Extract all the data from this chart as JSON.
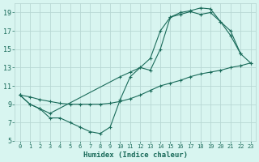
{
  "xlabel": "Humidex (Indice chaleur)",
  "bg_color": "#d8f5f0",
  "grid_color": "#b8d8d4",
  "line_color": "#1a6b5a",
  "xlim": [
    -0.5,
    23.5
  ],
  "ylim": [
    5,
    20
  ],
  "xticks": [
    0,
    1,
    2,
    3,
    4,
    5,
    6,
    7,
    8,
    9,
    10,
    11,
    12,
    13,
    14,
    15,
    16,
    17,
    18,
    19,
    20,
    21,
    22,
    23
  ],
  "yticks": [
    5,
    7,
    9,
    11,
    13,
    15,
    17,
    19
  ],
  "line1_x": [
    0,
    1,
    2,
    3,
    10,
    11,
    12,
    13,
    14,
    15,
    16,
    17,
    18,
    19,
    20,
    21,
    22,
    23
  ],
  "line1_y": [
    10,
    9,
    8.5,
    8,
    12,
    12.5,
    13,
    12.7,
    15,
    18.5,
    19,
    19.2,
    19.5,
    19.4,
    18,
    16.5,
    14.5,
    13.5
  ],
  "line2_x": [
    0,
    1,
    2,
    3,
    4,
    5,
    6,
    7,
    8,
    9,
    10,
    11,
    12,
    13,
    14,
    15,
    16,
    17,
    18,
    19,
    20,
    21,
    22
  ],
  "line2_y": [
    10,
    9,
    8.5,
    7.5,
    7.5,
    7.0,
    6.5,
    6.0,
    5.8,
    6.5,
    9.5,
    12,
    13,
    14,
    17,
    18.5,
    18.8,
    19.1,
    18.8,
    19.0,
    18.0,
    17.0,
    14.5
  ],
  "line3_x": [
    0,
    1,
    2,
    3,
    4,
    5,
    6,
    7,
    8,
    9,
    10,
    11,
    12,
    13,
    14,
    15,
    16,
    17,
    18,
    19,
    20,
    21,
    22,
    23
  ],
  "line3_y": [
    10,
    9.8,
    9.5,
    9.3,
    9.1,
    9.0,
    9.0,
    9.0,
    9.0,
    9.1,
    9.3,
    9.6,
    10.0,
    10.5,
    11.0,
    11.3,
    11.6,
    12.0,
    12.3,
    12.5,
    12.7,
    13.0,
    13.2,
    13.5
  ]
}
